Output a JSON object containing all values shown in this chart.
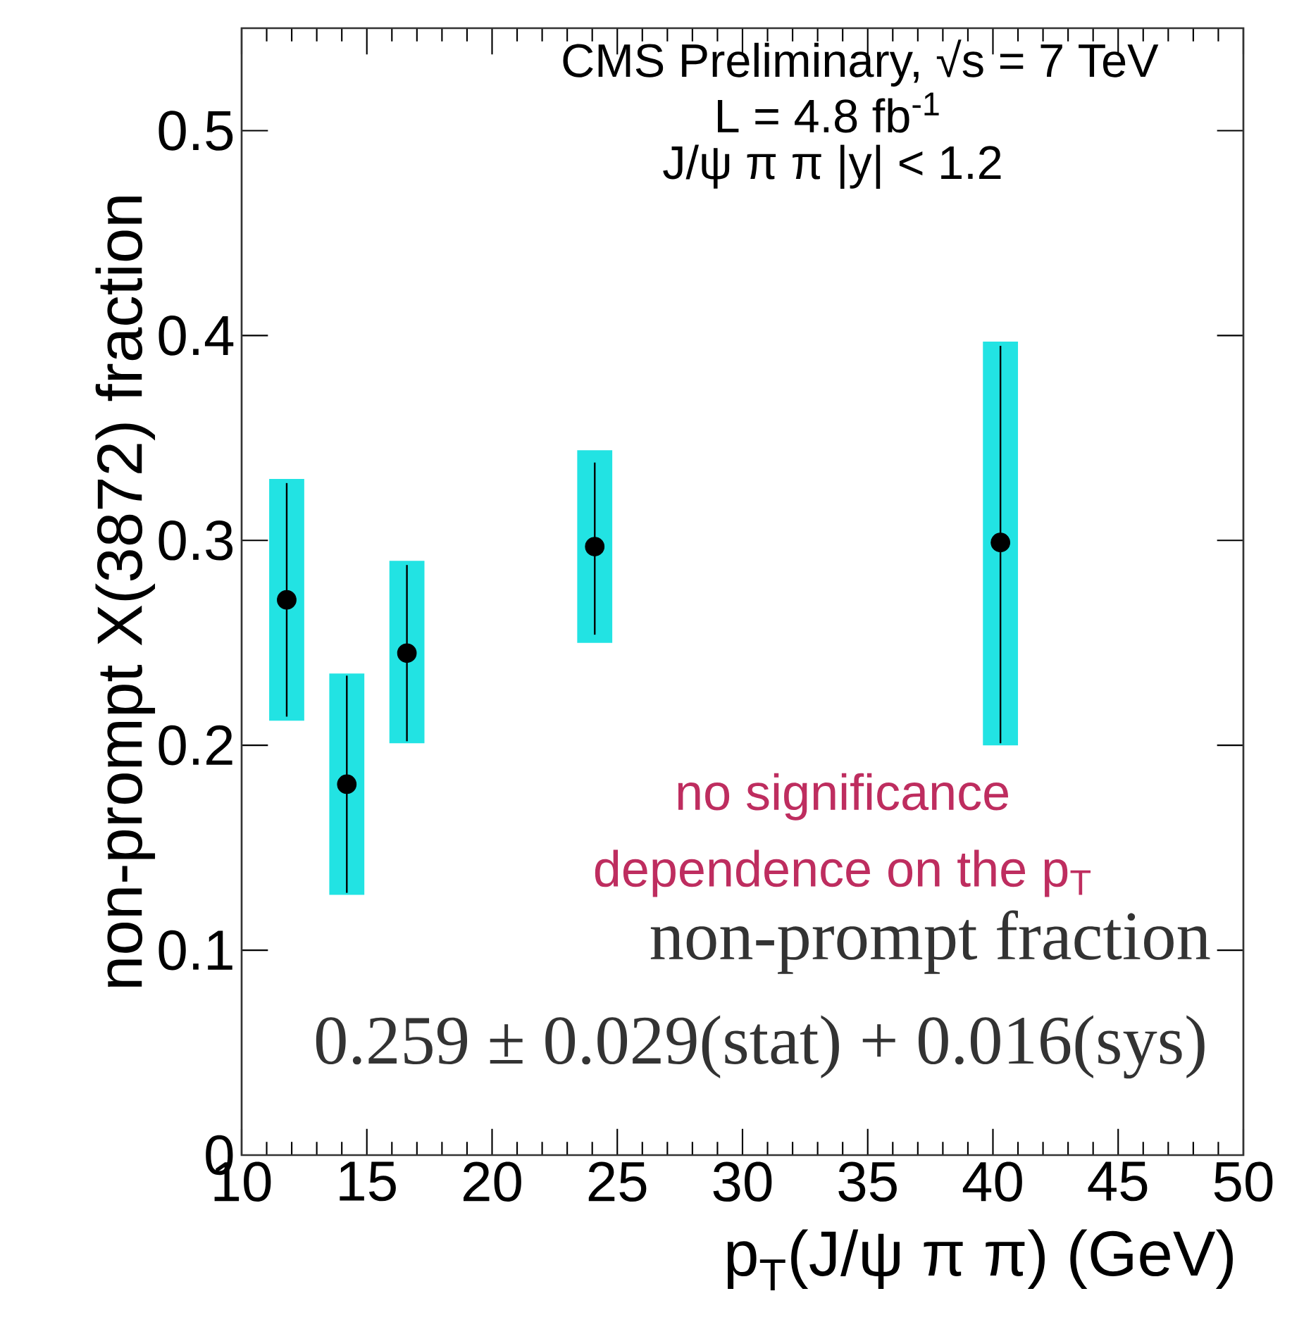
{
  "chart_data": {
    "type": "scatter",
    "xlabel": "p$_{T}$(J/ψ π π) (GeV)",
    "ylabel": "non-prompt X(3872) fraction",
    "xlim": [
      10,
      50
    ],
    "ylim": [
      0,
      0.55
    ],
    "xticks": [
      10,
      15,
      20,
      25,
      30,
      35,
      40,
      45,
      50
    ],
    "yticks": [
      0,
      0.1,
      0.2,
      0.3,
      0.4,
      0.5
    ],
    "grid": false,
    "annotations": [
      "CMS Preliminary, √s = 7 TeV",
      "L = 4.8 fb$^{-1}$",
      "J/ψ π π |y| < 1.2",
      "no significance",
      "dependence on the p$_{T}$",
      "non-prompt fraction",
      "0.259 ± 0.029(stat) + 0.016(sys)"
    ],
    "series": [
      {
        "type": "bar",
        "color": "#22e3e3",
        "x": [
          11.8,
          14.2,
          16.6,
          24.1,
          40.3
        ],
        "base": [
          0.212,
          0.127,
          0.201,
          0.25,
          0.2
        ],
        "values": [
          0.118,
          0.108,
          0.089,
          0.094,
          0.197
        ]
      },
      {
        "type": "scatter",
        "color": "#000000",
        "x": [
          11.8,
          14.2,
          16.6,
          24.1,
          40.3
        ],
        "values": [
          0.271,
          0.181,
          0.245,
          0.297,
          0.299
        ],
        "errors": [
          [
            0.214,
            0.328
          ],
          [
            0.128,
            0.234
          ],
          [
            0.202,
            0.288
          ],
          [
            0.254,
            0.338
          ],
          [
            0.201,
            0.395
          ]
        ]
      }
    ]
  }
}
